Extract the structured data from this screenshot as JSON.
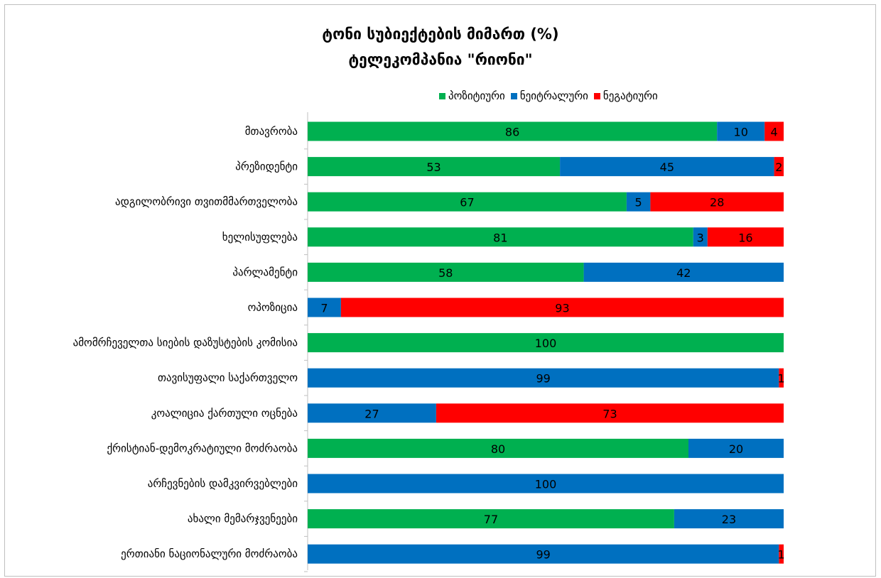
{
  "chart_data": {
    "type": "bar",
    "orientation": "horizontal",
    "stacked": "100%",
    "title_lines": [
      "ტონი სუბიექტების მიმართ (%)",
      "ტელეკომპანია \"რიონი\""
    ],
    "legend_position": "top",
    "categories": [
      "მთავრობა",
      "პრეზიდენტი",
      "ადგილობრივი თვითმმართველობა",
      "ხელისუფლება",
      "პარლამენტი",
      "ოპოზიცია",
      "ამომრჩეველთა სიების დაზუსტების კომისია",
      "თავისუფალი საქართველო",
      "კოალიცია ქართული ოცნება",
      "ქრისტიან-დემოკრატიული მოძრაობა",
      "არჩევნების დამკვირვებლები",
      "ახალი მემარჯვენეები",
      "ერთიანი ნაციონალური მოძრაობა"
    ],
    "series": [
      {
        "name": "პოზიტიური",
        "color": "#00b050",
        "values": [
          86,
          53,
          67,
          81,
          58,
          0,
          100,
          0,
          0,
          80,
          0,
          77,
          0
        ]
      },
      {
        "name": "ნეიტრალური",
        "color": "#0070c0",
        "values": [
          10,
          45,
          5,
          3,
          42,
          7,
          0,
          99,
          27,
          20,
          100,
          23,
          99
        ]
      },
      {
        "name": "ნეგატიური",
        "color": "#ff0000",
        "values": [
          4,
          2,
          28,
          16,
          0,
          93,
          0,
          1,
          73,
          0,
          0,
          0,
          1
        ]
      }
    ],
    "xlim": [
      0,
      100
    ],
    "grid": false
  }
}
